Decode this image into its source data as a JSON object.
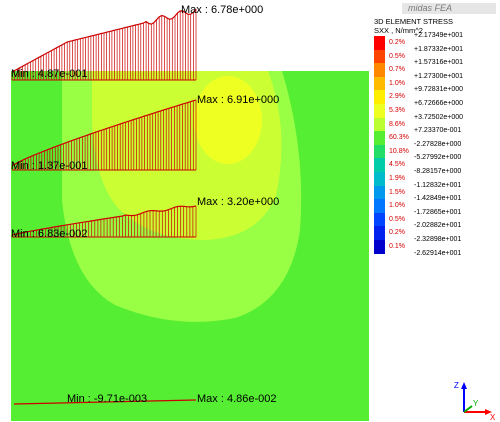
{
  "app": {
    "logo_text": "midas FEA"
  },
  "legend": {
    "title": "3D ELEMENT STRESS",
    "subtitle": "SXX , N/mm^2",
    "entries": [
      {
        "value": "+2.17349e+001",
        "pct": "0.2%",
        "color": "#ff0000"
      },
      {
        "value": "+1.87332e+001",
        "pct": "0.5%",
        "color": "#ff4400"
      },
      {
        "value": "+1.57316e+001",
        "pct": "0.7%",
        "color": "#ff8800"
      },
      {
        "value": "+1.27300e+001",
        "pct": "1.0%",
        "color": "#ffbb00"
      },
      {
        "value": "+9.72831e+000",
        "pct": "2.9%",
        "color": "#ffee00"
      },
      {
        "value": "+6.72666e+000",
        "pct": "5.3%",
        "color": "#eeff22"
      },
      {
        "value": "+3.72502e+000",
        "pct": "8.6%",
        "color": "#bbff33"
      },
      {
        "value": "+7.23370e-001",
        "pct": "60.3%",
        "color": "#55ee33"
      },
      {
        "value": "-2.27828e+000",
        "pct": "10.8%",
        "color": "#22dd66"
      },
      {
        "value": "-5.27992e+000",
        "pct": "4.5%",
        "color": "#00ccaa"
      },
      {
        "value": "-8.28157e+000",
        "pct": "1.9%",
        "color": "#00bbcc"
      },
      {
        "value": "-1.12832e+001",
        "pct": "1.5%",
        "color": "#0099ee"
      },
      {
        "value": "-1.42849e+001",
        "pct": "1.0%",
        "color": "#0077ff"
      },
      {
        "value": "-1.72865e+001",
        "pct": "0.5%",
        "color": "#0044ff"
      },
      {
        "value": "-2.02882e+001",
        "pct": "0.2%",
        "color": "#0022ee"
      },
      {
        "value": "-2.32898e+001",
        "pct": "0.1%",
        "color": "#0000cc"
      },
      {
        "value": "-2.62914e+001",
        "pct": "",
        "color": ""
      }
    ]
  },
  "plots": [
    {
      "max_label": "Max : 6.78e+000",
      "min_label": "Min : 4.87e-001"
    },
    {
      "max_label": "Max : 6.91e+000",
      "min_label": "Min : 1.37e-001"
    },
    {
      "max_label": "Max : 3.20e+000",
      "min_label": "Min : 6.83e-002"
    },
    {
      "max_label": "Max : 4.86e-002",
      "min_label": "Min : -9.71e-003"
    }
  ],
  "axis": {
    "x_label": "X",
    "y_label": "Y",
    "z_label": "Z"
  },
  "colors": {
    "background": "#ffffff",
    "model_base": "#55ee33",
    "contour_lightgreen": "#99ff44",
    "contour_yellowgreen": "#ccff33",
    "contour_yellow": "#eeff22",
    "diagram_line": "#cc0000"
  }
}
